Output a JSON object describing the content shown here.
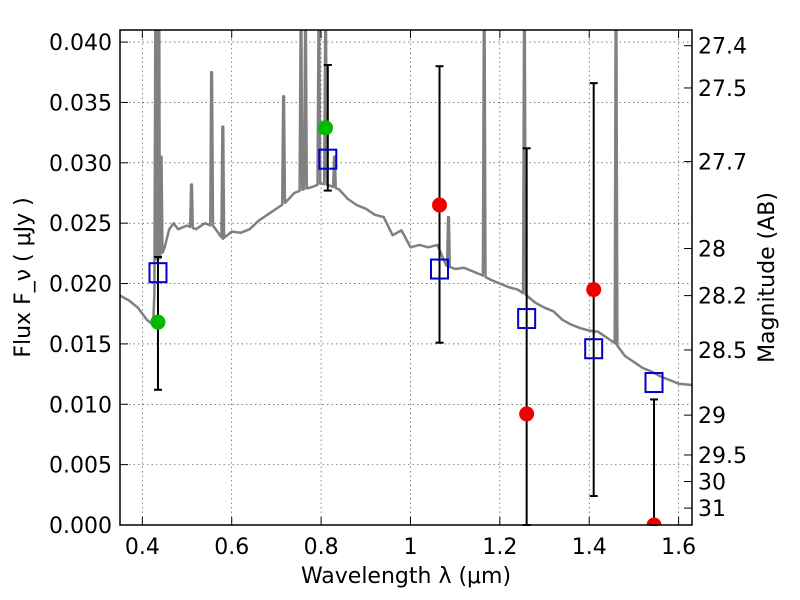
{
  "chart_data": {
    "type": "scatter",
    "title": "",
    "xlabel": "Wavelength  λ (μm)",
    "ylabel": "Flux  F_ν  ( μJy )",
    "ylabel_right": "Magnitude (AB)",
    "xlim": [
      0.35,
      1.63
    ],
    "ylim": [
      0.0,
      0.041
    ],
    "grid": true,
    "x_ticks": [
      0.4,
      0.6,
      0.8,
      1.0,
      1.2,
      1.4,
      1.6
    ],
    "x_tick_labels": [
      "0.4",
      "0.6",
      "0.8",
      "1",
      "1.2",
      "1.4",
      "1.6"
    ],
    "y_ticks": [
      0.0,
      0.005,
      0.01,
      0.015,
      0.02,
      0.025,
      0.03,
      0.035,
      0.04
    ],
    "y_tick_labels": [
      "0.000",
      "0.005",
      "0.010",
      "0.015",
      "0.020",
      "0.025",
      "0.030",
      "0.035",
      "0.040"
    ],
    "right_ticks": [
      {
        "label": "27.4",
        "flux": 0.0397
      },
      {
        "label": "27.5",
        "flux": 0.0362
      },
      {
        "label": "27.7",
        "flux": 0.0301
      },
      {
        "label": "28",
        "flux": 0.0229
      },
      {
        "label": "28.2",
        "flux": 0.019
      },
      {
        "label": "28.5",
        "flux": 0.0145
      },
      {
        "label": "29",
        "flux": 0.0091
      },
      {
        "label": "29.5",
        "flux": 0.0058
      },
      {
        "label": "30",
        "flux": 0.0036
      },
      {
        "label": "31",
        "flux": 0.0014
      }
    ],
    "series": [
      {
        "kind": "open-square",
        "color": "#0000cc",
        "points": [
          {
            "x": 0.435,
            "y": 0.0209,
            "lo": 0.0112,
            "hi": 0.0222
          },
          {
            "x": 0.815,
            "y": 0.0303,
            "lo": 0.0277,
            "hi": 0.0381
          },
          {
            "x": 1.065,
            "y": 0.0212,
            "lo": 0.0151,
            "hi": 0.038
          },
          {
            "x": 1.26,
            "y": 0.0171,
            "lo": 0.0,
            "hi": 0.0312
          },
          {
            "x": 1.41,
            "y": 0.0146,
            "lo": 0.0024,
            "hi": 0.0366
          },
          {
            "x": 1.545,
            "y": 0.0118,
            "lo": 0.0,
            "hi": 0.0104
          }
        ]
      },
      {
        "kind": "filled-circle",
        "color": "#00bb00",
        "points": [
          {
            "x": 0.435,
            "y": 0.0168
          },
          {
            "x": 0.81,
            "y": 0.0329
          }
        ]
      },
      {
        "kind": "filled-circle",
        "color": "#ee0000",
        "points": [
          {
            "x": 1.065,
            "y": 0.0265
          },
          {
            "x": 1.26,
            "y": 0.0092
          },
          {
            "x": 1.41,
            "y": 0.0195
          },
          {
            "x": 1.545,
            "y": 0.0
          }
        ]
      }
    ],
    "model_spectrum": {
      "color": "#808080",
      "continuum": [
        [
          0.35,
          0.019
        ],
        [
          0.37,
          0.0186
        ],
        [
          0.39,
          0.018
        ],
        [
          0.41,
          0.017
        ],
        [
          0.42,
          0.0167
        ],
        [
          0.425,
          0.0173
        ],
        [
          0.43,
          0.022
        ],
        [
          0.44,
          0.0221
        ],
        [
          0.45,
          0.023
        ],
        [
          0.46,
          0.0245
        ],
        [
          0.47,
          0.025
        ],
        [
          0.48,
          0.0245
        ],
        [
          0.5,
          0.0248
        ],
        [
          0.52,
          0.0245
        ],
        [
          0.54,
          0.025
        ],
        [
          0.56,
          0.0247
        ],
        [
          0.58,
          0.0237
        ],
        [
          0.6,
          0.0243
        ],
        [
          0.62,
          0.0242
        ],
        [
          0.64,
          0.0245
        ],
        [
          0.66,
          0.0252
        ],
        [
          0.68,
          0.0257
        ],
        [
          0.7,
          0.0262
        ],
        [
          0.72,
          0.0267
        ],
        [
          0.74,
          0.0275
        ],
        [
          0.76,
          0.0278
        ],
        [
          0.78,
          0.028
        ],
        [
          0.8,
          0.0283
        ],
        [
          0.82,
          0.0281
        ],
        [
          0.84,
          0.0278
        ],
        [
          0.86,
          0.027
        ],
        [
          0.88,
          0.0265
        ],
        [
          0.9,
          0.0262
        ],
        [
          0.92,
          0.0257
        ],
        [
          0.94,
          0.0255
        ],
        [
          0.96,
          0.024
        ],
        [
          0.98,
          0.0244
        ],
        [
          1.0,
          0.023
        ],
        [
          1.02,
          0.0232
        ],
        [
          1.04,
          0.023
        ],
        [
          1.06,
          0.0232
        ],
        [
          1.08,
          0.0215
        ],
        [
          1.1,
          0.0212
        ],
        [
          1.12,
          0.0213
        ],
        [
          1.14,
          0.021
        ],
        [
          1.16,
          0.0207
        ],
        [
          1.18,
          0.0203
        ],
        [
          1.2,
          0.02
        ],
        [
          1.22,
          0.0197
        ],
        [
          1.24,
          0.0195
        ],
        [
          1.26,
          0.019
        ],
        [
          1.28,
          0.0184
        ],
        [
          1.3,
          0.018
        ],
        [
          1.32,
          0.0177
        ],
        [
          1.34,
          0.017
        ],
        [
          1.36,
          0.0166
        ],
        [
          1.38,
          0.0163
        ],
        [
          1.4,
          0.0161
        ],
        [
          1.42,
          0.016
        ],
        [
          1.44,
          0.0155
        ],
        [
          1.46,
          0.015
        ],
        [
          1.48,
          0.014
        ],
        [
          1.5,
          0.0135
        ],
        [
          1.52,
          0.013
        ],
        [
          1.54,
          0.0127
        ],
        [
          1.56,
          0.0123
        ],
        [
          1.58,
          0.012
        ],
        [
          1.6,
          0.0117
        ],
        [
          1.63,
          0.0116
        ]
      ],
      "emission_lines": [
        {
          "x": 0.43,
          "peak": 0.041
        },
        {
          "x": 0.437,
          "peak": 0.041
        },
        {
          "x": 0.442,
          "peak": 0.0305
        },
        {
          "x": 0.51,
          "peak": 0.0282
        },
        {
          "x": 0.555,
          "peak": 0.0375
        },
        {
          "x": 0.58,
          "peak": 0.033
        },
        {
          "x": 0.716,
          "peak": 0.0355
        },
        {
          "x": 0.755,
          "peak": 0.041
        },
        {
          "x": 0.765,
          "peak": 0.041
        },
        {
          "x": 0.795,
          "peak": 0.041
        },
        {
          "x": 0.81,
          "peak": 0.041
        },
        {
          "x": 0.83,
          "peak": 0.0305
        },
        {
          "x": 1.085,
          "peak": 0.0255
        },
        {
          "x": 1.165,
          "peak": 0.041
        },
        {
          "x": 1.255,
          "peak": 0.041
        },
        {
          "x": 1.46,
          "peak": 0.041
        }
      ]
    }
  }
}
